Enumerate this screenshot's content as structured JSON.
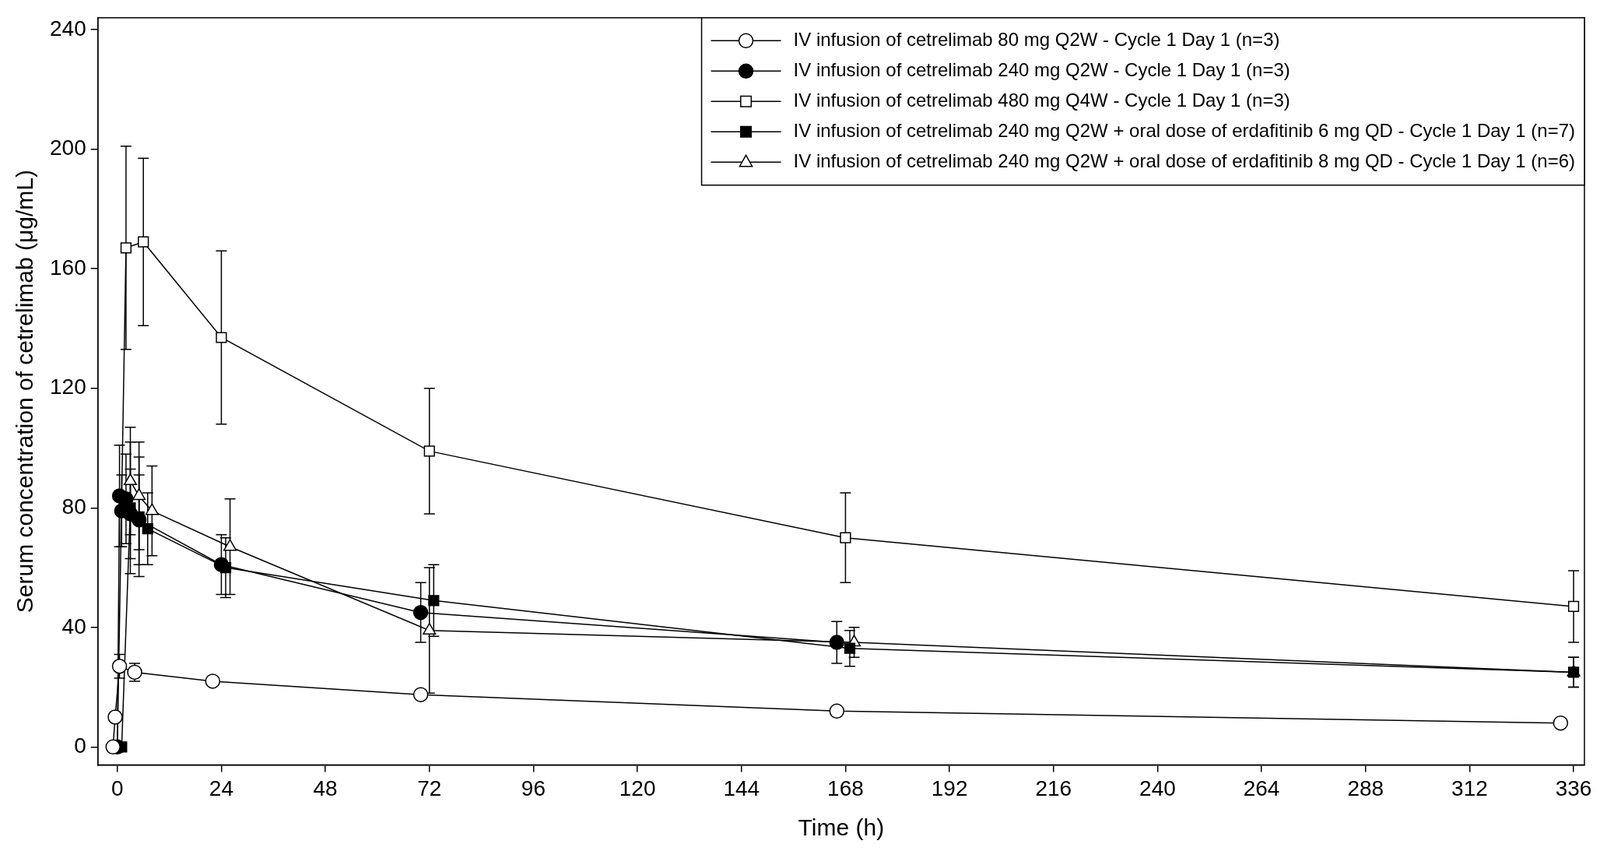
{
  "chart_data": {
    "type": "line",
    "x_label": "Time (h)",
    "y_label": "Serum concentration of cetrelimab (μg/mL)",
    "xlim": [
      -4.5,
      338.5
    ],
    "xticks": [
      0,
      24,
      48,
      72,
      96,
      120,
      144,
      168,
      192,
      216,
      240,
      264,
      288,
      312,
      336
    ],
    "ylim": [
      -6,
      244
    ],
    "yticks": [
      0,
      40,
      80,
      120,
      160,
      200,
      240
    ],
    "grid": false,
    "legend": "upper right",
    "series": [
      {
        "name": "IV infusion of cetrelimab 80 mg Q2W - Cycle 1 Day 1 (n=3)",
        "color": "#000000",
        "marker": "circle-open",
        "x": [
          -1,
          -0.5,
          0.5,
          4,
          22,
          70,
          166,
          333
        ],
        "values": [
          0,
          10,
          27,
          25,
          22,
          17.5,
          12,
          8
        ],
        "errors": [
          null,
          null,
          4,
          3,
          1,
          1,
          1,
          1.5
        ]
      },
      {
        "name": "IV infusion of cetrelimab 240 mg Q2W - Cycle 1 Day 1 (n=3)",
        "color": "#000000",
        "marker": "circle-filled",
        "x": [
          0,
          0.5,
          1,
          2,
          3,
          5,
          24,
          70,
          166
        ],
        "values": [
          0,
          84,
          79,
          83,
          78,
          76,
          61,
          45,
          35
        ],
        "errors": [
          null,
          17,
          12,
          15,
          15,
          15,
          10,
          10,
          7
        ]
      },
      {
        "name": "IV infusion of cetrelimab 480 mg Q4W - Cycle 1 Day 1 (n=3)",
        "color": "#000000",
        "marker": "square-open",
        "x": [
          0,
          2,
          6,
          24,
          72,
          168,
          336
        ],
        "values": [
          0,
          167,
          169,
          137,
          99,
          70,
          47
        ],
        "errors": [
          null,
          34,
          28,
          29,
          21,
          15,
          12
        ]
      },
      {
        "name": "IV infusion of cetrelimab 240 mg Q2W + oral dose of erdafitinib 6 mg QD - Cycle 1 Day 1 (n=7)",
        "color": "#000000",
        "marker": "square-filled",
        "x": [
          1,
          3,
          5,
          7,
          25,
          73,
          169,
          336
        ],
        "values": [
          0,
          80,
          77,
          73,
          60,
          49,
          33,
          25
        ],
        "errors": [
          null,
          22,
          20,
          12,
          10,
          12,
          6,
          5
        ]
      },
      {
        "name": "IV infusion of cetrelimab 240 mg Q2W + oral dose of erdafitinib 8 mg QD - Cycle 1 Day 1 (n=6)",
        "color": "#000000",
        "marker": "triangle-open",
        "x": [
          3,
          5,
          8,
          26,
          72,
          170,
          336
        ],
        "values": [
          89,
          84,
          79,
          67,
          39,
          35,
          25
        ],
        "errors": [
          18,
          18,
          15,
          16,
          21,
          5,
          5
        ]
      }
    ]
  }
}
